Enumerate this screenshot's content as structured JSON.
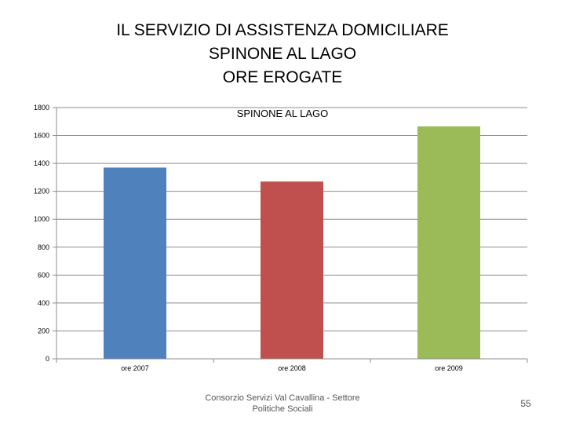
{
  "slide": {
    "title_lines": [
      "IL SERVIZIO DI ASSISTENZA DOMICILIARE",
      "SPINONE AL LAGO",
      "ORE EROGATE"
    ],
    "footer": "Consorzio Servizi Val Cavallina - Settore Politiche Sociali",
    "page_number": "55"
  },
  "chart_data": {
    "type": "bar",
    "title": "SPINONE AL LAGO",
    "categories": [
      "ore 2007",
      "ore 2008",
      "ore 2009"
    ],
    "values": [
      1370,
      1270,
      1665
    ],
    "colors": [
      "#4f81bd",
      "#c0504d",
      "#9bbb59"
    ],
    "ylim": [
      0,
      1800
    ],
    "yticks": [
      0,
      200,
      400,
      600,
      800,
      1000,
      1200,
      1400,
      1600,
      1800
    ],
    "grid": true,
    "legend": "none",
    "xlabel": "",
    "ylabel": ""
  }
}
